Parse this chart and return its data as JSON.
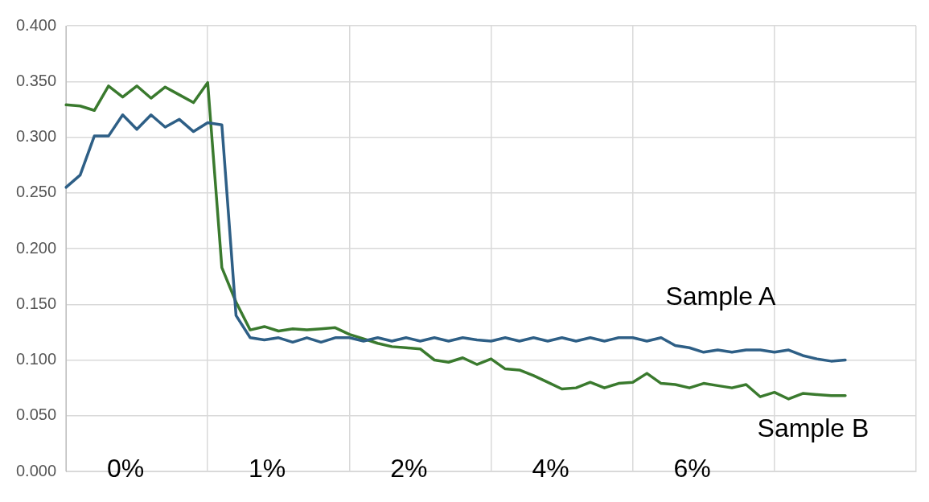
{
  "chart_data": {
    "type": "line",
    "categories": [
      null,
      null,
      null,
      null,
      null,
      null,
      null,
      null,
      null,
      null,
      null,
      null,
      null,
      null,
      null,
      null,
      null,
      null,
      null,
      null,
      null,
      null,
      null,
      null,
      null,
      null,
      null,
      null,
      null,
      null,
      null,
      null,
      null,
      null,
      null,
      null,
      null,
      null,
      null,
      null,
      null,
      null,
      null,
      null,
      null,
      null,
      null,
      null,
      null,
      null,
      null,
      null,
      null,
      null,
      null,
      null,
      null,
      null,
      null,
      null,
      null
    ],
    "ylim": [
      0,
      0.4
    ],
    "yticks": [
      {
        "value": 0,
        "label": "0.000"
      },
      {
        "value": 0.05,
        "label": "0.050"
      },
      {
        "value": 0.1,
        "label": "0.100"
      },
      {
        "value": 0.15,
        "label": "0.150"
      },
      {
        "value": 0.2,
        "label": "0.200"
      },
      {
        "value": 0.25,
        "label": "0.250"
      },
      {
        "value": 0.3,
        "label": "0.300"
      },
      {
        "value": 0.35,
        "label": "0.350"
      },
      {
        "value": 0.4,
        "label": "0.400"
      }
    ],
    "tick_labels": "y",
    "grid": true,
    "legend": false,
    "marker": "none",
    "line_style": "solid",
    "series": [
      {
        "name": "Sample A",
        "color": "#2e5f86",
        "values": [
          0.255,
          0.266,
          0.301,
          0.301,
          0.32,
          0.307,
          0.32,
          0.309,
          0.316,
          0.305,
          0.313,
          0.311,
          0.14,
          0.12,
          0.118,
          0.12,
          0.116,
          0.12,
          0.116,
          0.12,
          0.12,
          0.117,
          0.12,
          0.117,
          0.12,
          0.117,
          0.12,
          0.117,
          0.12,
          0.118,
          0.117,
          0.12,
          0.117,
          0.12,
          0.117,
          0.12,
          0.117,
          0.12,
          0.117,
          0.12,
          0.12,
          0.117,
          0.12,
          0.113,
          0.111,
          0.107,
          0.109,
          0.107,
          0.109,
          0.109,
          0.107,
          0.109,
          0.104,
          0.101,
          0.099,
          0.1,
          null,
          null,
          null,
          null,
          null
        ]
      },
      {
        "name": "Sample B",
        "color": "#3a7a2e",
        "values": [
          0.329,
          0.328,
          0.324,
          0.346,
          0.336,
          0.346,
          0.335,
          0.345,
          0.338,
          0.331,
          0.349,
          0.183,
          0.152,
          0.127,
          0.13,
          0.126,
          0.128,
          0.127,
          0.128,
          0.129,
          0.123,
          0.119,
          0.115,
          0.112,
          0.111,
          0.11,
          0.1,
          0.098,
          0.102,
          0.096,
          0.101,
          0.092,
          0.091,
          0.086,
          0.08,
          0.074,
          0.075,
          0.08,
          0.075,
          0.079,
          0.08,
          0.088,
          0.079,
          0.078,
          0.075,
          0.079,
          0.077,
          0.075,
          0.078,
          0.067,
          0.071,
          0.065,
          0.07,
          0.069,
          0.068,
          0.068,
          null,
          null,
          null,
          null,
          null
        ]
      }
    ],
    "annotations": [
      "0%",
      "1%",
      "2%",
      "4%",
      "6%"
    ]
  }
}
